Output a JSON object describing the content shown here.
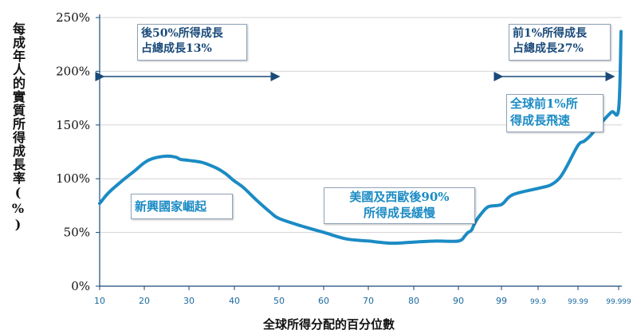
{
  "chart_data": {
    "type": "line",
    "ylabel": "每成年人的實質所得成長率(%)",
    "xlabel": "全球所得分配的百分位數",
    "y_ticks": [
      "0%",
      "50%",
      "100%",
      "150%",
      "200%",
      "250%"
    ],
    "ylim": [
      0,
      250
    ],
    "x_ticks": [
      "10",
      "20",
      "30",
      "40",
      "50",
      "60",
      "70",
      "80",
      "90",
      "99",
      "99.9",
      "99.99",
      "99.999"
    ],
    "grid": "horizontal",
    "color": "#1b8bc4",
    "x": [
      10,
      12,
      15,
      18,
      20,
      22,
      25,
      27,
      28,
      30,
      33,
      36,
      38,
      40,
      42,
      45,
      48,
      50,
      55,
      60,
      65,
      70,
      75,
      80,
      85,
      90,
      93,
      94,
      95,
      96,
      97,
      98,
      99,
      99.5,
      99.9,
      99.95,
      99.97,
      99.98,
      99.99,
      99.993,
      99.995,
      99.997,
      99.9985,
      99.999
    ],
    "y": [
      77,
      87,
      98,
      108,
      115,
      119,
      121,
      120,
      118,
      117,
      115,
      110,
      105,
      98,
      92,
      80,
      69,
      63,
      56,
      50,
      44,
      42,
      40,
      41,
      42,
      42,
      47,
      50,
      52,
      60,
      67,
      74,
      76,
      85,
      91,
      94,
      100,
      110,
      131,
      135,
      140,
      150,
      162,
      165
    ],
    "y_end": 237
  },
  "annotations": {
    "bottom50": "後50%所得成長\n占總成長13%",
    "top1": "前1%所得成長\n占總成長27%",
    "emerging": "新興國家崛起",
    "us_europe": "美國及西歐後90%\n所得成長緩慢",
    "global_top1": "全球前1%所\n得成長飛速"
  }
}
